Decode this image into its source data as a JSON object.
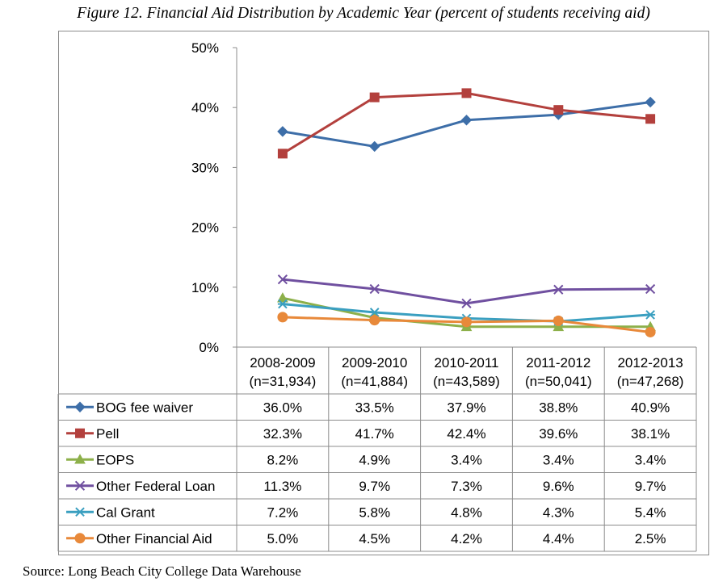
{
  "figure_title": "Figure 12. Financial Aid Distribution by Academic Year (percent of students receiving aid)",
  "source": "Source: Long Beach City College Data Warehouse",
  "chart_data": {
    "type": "line",
    "title": "Figure 12. Financial Aid Distribution by Academic Year (percent of students receiving aid)",
    "xlabel": "",
    "ylabel": "",
    "ylim": [
      0,
      50
    ],
    "yticks": [
      0,
      10,
      20,
      30,
      40,
      50
    ],
    "ytick_labels": [
      "0%",
      "10%",
      "20%",
      "30%",
      "40%",
      "50%"
    ],
    "grid": false,
    "legend": "data-table",
    "categories": [
      "2008-2009",
      "2009-2010",
      "2010-2011",
      "2011-2012",
      "2012-2013"
    ],
    "category_sublabels": [
      "(n=31,934)",
      "(n=41,884)",
      "(n=43,589)",
      "(n=50,041)",
      "(n=47,268)"
    ],
    "series": [
      {
        "name": "BOG fee waiver",
        "color": "#3d6ea8",
        "marker": "diamond",
        "values": [
          36.0,
          33.5,
          37.9,
          38.8,
          40.9
        ],
        "labels": [
          "36.0%",
          "33.5%",
          "37.9%",
          "38.8%",
          "40.9%"
        ]
      },
      {
        "name": "Pell",
        "color": "#b3403d",
        "marker": "square",
        "values": [
          32.3,
          41.7,
          42.4,
          39.6,
          38.1
        ],
        "labels": [
          "32.3%",
          "41.7%",
          "42.4%",
          "39.6%",
          "38.1%"
        ]
      },
      {
        "name": "EOPS",
        "color": "#8db04a",
        "marker": "triangle",
        "values": [
          8.2,
          4.9,
          3.4,
          3.4,
          3.4
        ],
        "labels": [
          "8.2%",
          "4.9%",
          "3.4%",
          "3.4%",
          "3.4%"
        ]
      },
      {
        "name": "Other Federal Loan",
        "color": "#7050a0",
        "marker": "x",
        "values": [
          11.3,
          9.7,
          7.3,
          9.6,
          9.7
        ],
        "labels": [
          "11.3%",
          "9.7%",
          "7.3%",
          "9.6%",
          "9.7%"
        ]
      },
      {
        "name": "Cal Grant",
        "color": "#3a9fc0",
        "marker": "star",
        "values": [
          7.2,
          5.8,
          4.8,
          4.3,
          5.4
        ],
        "labels": [
          "7.2%",
          "5.8%",
          "4.8%",
          "4.3%",
          "5.4%"
        ]
      },
      {
        "name": "Other Financial Aid",
        "color": "#e8893a",
        "marker": "circle",
        "values": [
          5.0,
          4.5,
          4.2,
          4.4,
          2.5
        ],
        "labels": [
          "5.0%",
          "4.5%",
          "4.2%",
          "4.4%",
          "2.5%"
        ]
      }
    ]
  }
}
